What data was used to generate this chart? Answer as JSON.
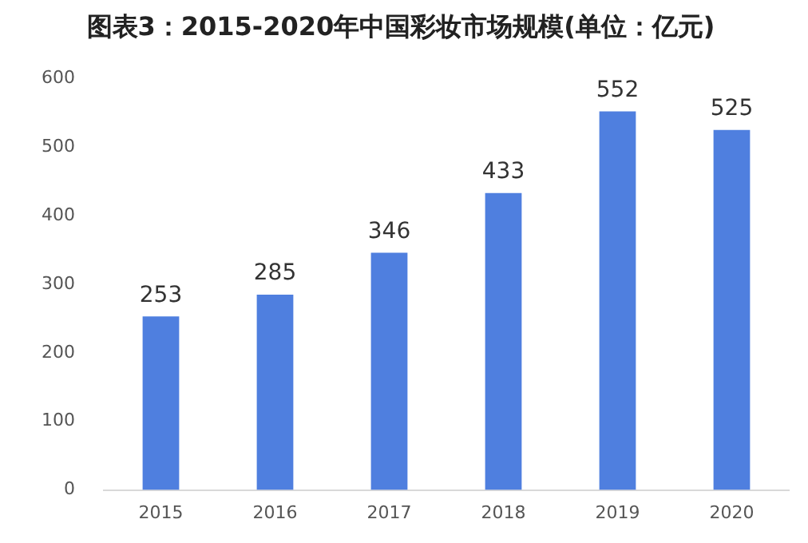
{
  "chart_data": {
    "type": "bar",
    "title": "图表3：2015-2020年中国彩妆市场规模(单位：亿元)",
    "categories": [
      "2015",
      "2016",
      "2017",
      "2018",
      "2019",
      "2020"
    ],
    "values": [
      253,
      285,
      346,
      433,
      552,
      525
    ],
    "color": "#4f7fdf",
    "ylim": [
      0,
      600
    ],
    "yticks": [
      0,
      100,
      200,
      300,
      400,
      500,
      600
    ],
    "grid": false,
    "legend": false,
    "data_labels": true
  }
}
